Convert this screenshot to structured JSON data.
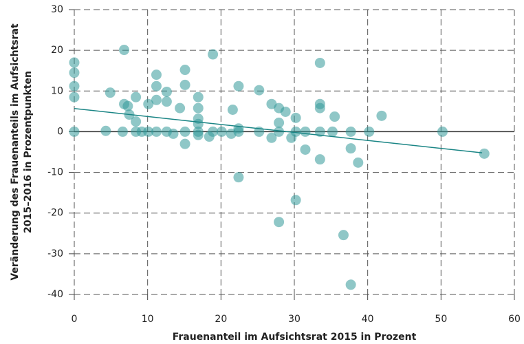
{
  "chart_data": {
    "type": "scatter",
    "x_label": "Frauenanteil im Aufsichtsrat 2015 in Prozent",
    "y_label": [
      "Veränderung des Frauenanteils im Aufsichtsrat",
      "2015–2016 in Prozentpunkten"
    ],
    "color": "#339999",
    "x": [
      0,
      0,
      0,
      0,
      0,
      4.3,
      4.9,
      6.8,
      6.8,
      7.3,
      7.5,
      6.6,
      8.4,
      8.4,
      8.4,
      9.2,
      10.1,
      10.1,
      11.2,
      11.2,
      11.2,
      11.2,
      12.6,
      12.6,
      12.6,
      13.5,
      14.4,
      15.1,
      15.1,
      15.1,
      15.1,
      16.9,
      16.9,
      16.9,
      16.9,
      16.9,
      16.9,
      18.4,
      18.9,
      18.9,
      20.1,
      21.4,
      21.6,
      22.4,
      22.4,
      22.4,
      22.4,
      25.2,
      25.2,
      26.9,
      26.9,
      27.9,
      27.9,
      27.9,
      27.9,
      28.8,
      29.6,
      30.2,
      30.2,
      30.2,
      31.5,
      31.5,
      33.5,
      33.5,
      33.5,
      33.5,
      33.5,
      35.2,
      35.5,
      36.7,
      37.7,
      37.7,
      37.7,
      38.7,
      40.2,
      41.9,
      50.2,
      55.9
    ],
    "values": [
      17,
      14.5,
      11.2,
      8.5,
      0,
      0.2,
      9.6,
      20.1,
      6.8,
      6.3,
      4.2,
      0,
      8.5,
      2.5,
      0,
      0,
      6.8,
      0,
      14,
      11.2,
      7.8,
      0,
      9.8,
      7.4,
      0,
      -0.5,
      5.8,
      15.2,
      11.5,
      0,
      -3,
      8.5,
      5.8,
      3.2,
      1.9,
      0,
      -0.8,
      -1.2,
      0,
      19,
      0,
      -0.5,
      5.4,
      11.2,
      0.8,
      0,
      -11.2,
      10.2,
      0,
      6.8,
      -1.5,
      5.8,
      2.2,
      0,
      -22.2,
      4.9,
      -1.5,
      3.4,
      0,
      -16.8,
      -4.4,
      0,
      16.9,
      6.8,
      5.8,
      0,
      -6.8,
      0,
      3.7,
      -25.4,
      0,
      -4.1,
      -37.6,
      -7.6,
      0,
      3.9,
      0,
      -5.4
    ],
    "trend_line": {
      "x": [
        0,
        55.6
      ],
      "values": [
        5.7,
        -5.2
      ],
      "color": "#1a8585"
    },
    "xlim": [
      0,
      60
    ],
    "xticks": [
      0,
      10,
      20,
      30,
      40,
      50,
      60
    ],
    "ylim": [
      -40,
      30
    ],
    "yticks": [
      -40,
      -30,
      -20,
      -10,
      0,
      10,
      20,
      30
    ],
    "grid": true
  }
}
